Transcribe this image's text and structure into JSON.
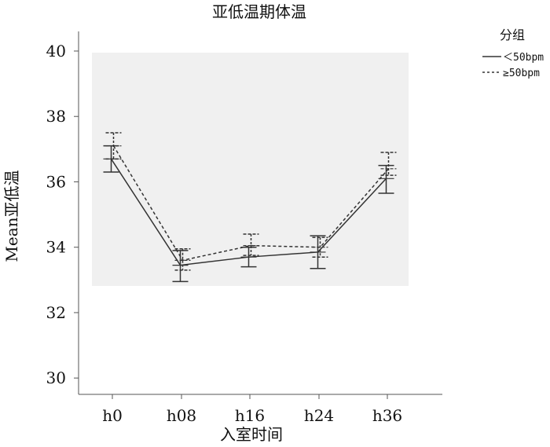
{
  "chart_data": {
    "type": "line",
    "title": "亚低温期体温",
    "xlabel": "入室时间",
    "ylabel": "Mean亚低温",
    "categories": [
      "h0",
      "h08",
      "h16",
      "h24",
      "h36"
    ],
    "ylim": [
      29.5,
      40.6
    ],
    "yticks": [
      30,
      32,
      34,
      36,
      38,
      40
    ],
    "legend_title": "分组",
    "legend_position": "top-right",
    "plot_background": "#f0f0f0",
    "series": [
      {
        "name": "＜50bpm",
        "style": "solid",
        "color": "#333333",
        "values": [
          36.7,
          33.45,
          33.7,
          33.85,
          36.1
        ],
        "lower": [
          36.3,
          32.95,
          33.4,
          33.35,
          35.65
        ],
        "upper": [
          37.1,
          33.9,
          34.0,
          34.35,
          36.5
        ]
      },
      {
        "name": "≥50bpm",
        "style": "dashed",
        "color": "#333333",
        "values": [
          37.1,
          33.6,
          34.05,
          34.0,
          36.4
        ],
        "lower": [
          36.7,
          33.3,
          33.75,
          33.7,
          36.2
        ],
        "upper": [
          37.5,
          33.95,
          34.4,
          34.3,
          36.9
        ]
      }
    ]
  }
}
